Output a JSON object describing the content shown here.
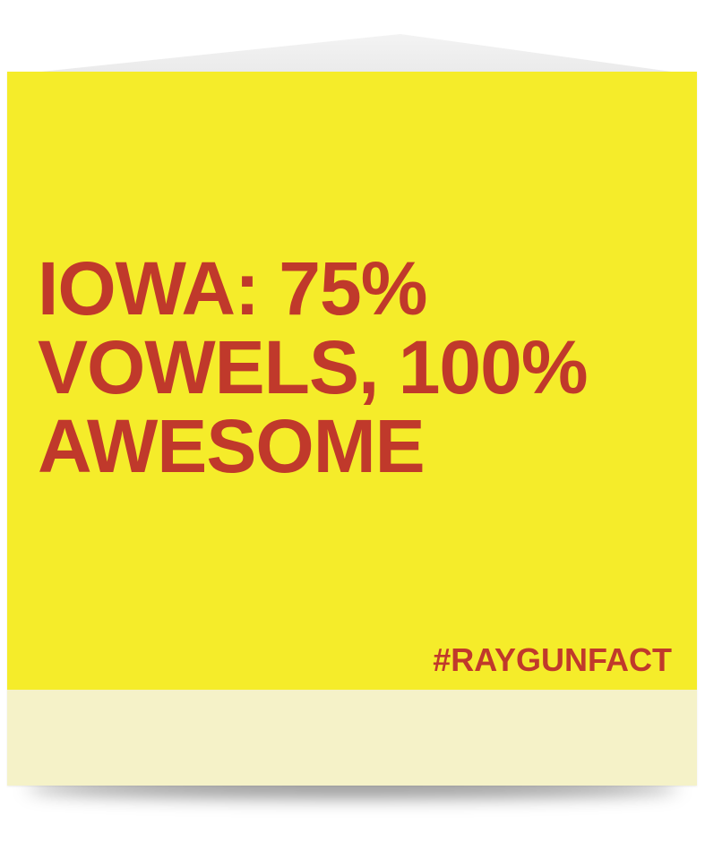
{
  "card": {
    "headline": "IOWA: 75%\nVOWELS, 100%\nAWESOME",
    "hashtag": "#RAYGUNFACT"
  },
  "colors": {
    "card_background": "#f5ec2a",
    "card_bottom_band": "#f5f2c8",
    "text": "#c0392b"
  }
}
